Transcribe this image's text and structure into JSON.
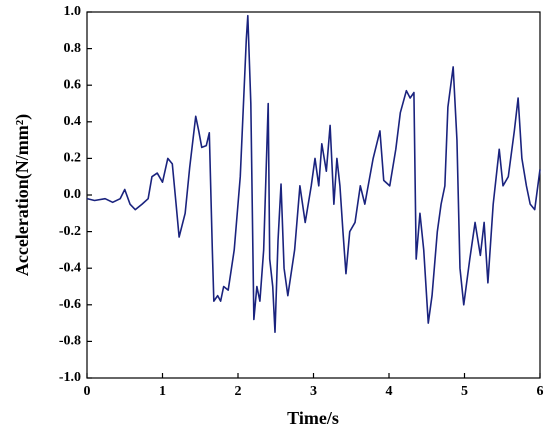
{
  "chart_data": {
    "type": "line",
    "xlabel": "Time/s",
    "ylabel": "Acceleration(N/mm²)",
    "xlim": [
      0,
      6
    ],
    "xticks": [
      0,
      1,
      2,
      3,
      4,
      5,
      6
    ],
    "ylim": [
      -1.0,
      1.0
    ],
    "yticks": [
      {
        "value": -1.0,
        "label": "-1.0"
      },
      -0.8,
      -0.6,
      -0.4,
      -0.2,
      {
        "value": 0,
        "label": "0.0"
      },
      0.2,
      0.4,
      0.6,
      0.8,
      {
        "value": 1.0,
        "label": "1.0"
      }
    ],
    "grid": false,
    "series": [
      {
        "color": "#1a237e",
        "x": [
          0,
          0.1,
          0.24,
          0.34,
          0.44,
          0.5,
          0.57,
          0.64,
          0.73,
          0.81,
          0.86,
          0.93,
          1.0,
          1.07,
          1.13,
          1.18,
          1.22,
          1.3,
          1.36,
          1.44,
          1.48,
          1.52,
          1.58,
          1.62,
          1.66,
          1.68,
          1.73,
          1.77,
          1.81,
          1.87,
          1.95,
          2.03,
          2.11,
          2.13,
          2.17,
          2.21,
          2.25,
          2.29,
          2.34,
          2.4,
          2.42,
          2.46,
          2.49,
          2.53,
          2.57,
          2.61,
          2.66,
          2.75,
          2.82,
          2.89,
          2.97,
          3.02,
          3.07,
          3.11,
          3.17,
          3.22,
          3.27,
          3.31,
          3.35,
          3.39,
          3.43,
          3.48,
          3.55,
          3.62,
          3.68,
          3.79,
          3.88,
          3.93,
          4.01,
          4.09,
          4.15,
          4.23,
          4.28,
          4.33,
          4.36,
          4.41,
          4.46,
          4.52,
          4.57,
          4.64,
          4.69,
          4.74,
          4.78,
          4.85,
          4.9,
          4.94,
          4.99,
          5.07,
          5.14,
          5.21,
          5.26,
          5.31,
          5.38,
          5.46,
          5.51,
          5.58,
          5.66,
          5.71,
          5.76,
          5.82,
          5.87,
          5.93,
          6.0
        ],
        "values": [
          -0.02,
          -0.03,
          -0.02,
          -0.04,
          -0.02,
          0.03,
          -0.05,
          -0.08,
          -0.05,
          -0.02,
          0.1,
          0.12,
          0.07,
          0.2,
          0.17,
          -0.05,
          -0.23,
          -0.1,
          0.15,
          0.43,
          0.35,
          0.26,
          0.27,
          0.34,
          -0.3,
          -0.58,
          -0.55,
          -0.58,
          -0.5,
          -0.52,
          -0.3,
          0.1,
          0.85,
          0.98,
          0.5,
          -0.68,
          -0.5,
          -0.58,
          -0.3,
          0.5,
          -0.35,
          -0.5,
          -0.75,
          -0.25,
          0.06,
          -0.4,
          -0.55,
          -0.3,
          0.05,
          -0.15,
          0.05,
          0.2,
          0.05,
          0.28,
          0.13,
          0.38,
          -0.05,
          0.2,
          0.05,
          -0.2,
          -0.43,
          -0.2,
          -0.15,
          0.05,
          -0.05,
          0.2,
          0.35,
          0.08,
          0.05,
          0.25,
          0.45,
          0.57,
          0.53,
          0.56,
          -0.35,
          -0.1,
          -0.3,
          -0.7,
          -0.55,
          -0.2,
          -0.05,
          0.05,
          0.48,
          0.7,
          0.3,
          -0.4,
          -0.6,
          -0.35,
          -0.15,
          -0.33,
          -0.15,
          -0.48,
          -0.05,
          0.25,
          0.05,
          0.1,
          0.35,
          0.53,
          0.2,
          0.05,
          -0.05,
          -0.08,
          0.14
        ]
      }
    ]
  }
}
